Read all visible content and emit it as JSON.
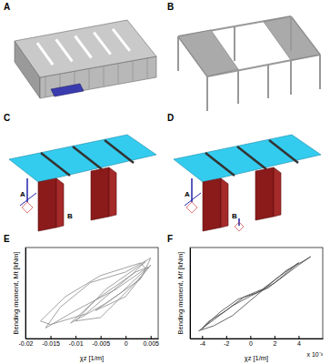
{
  "panels": {
    "labels": [
      "A",
      "B",
      "C",
      "D",
      "E",
      "F"
    ],
    "points_c": [
      "A",
      "B"
    ],
    "points_d": [
      "A",
      "B"
    ]
  },
  "chart_data": [
    {
      "type": "line",
      "x_label": "χz [1/m]",
      "y_label": "Bending moment, Mt [kNm]",
      "color": "#8a8a8a",
      "tick_labels": "x",
      "xlim": [
        -0.02,
        0.0065
      ],
      "xticks": [
        -0.02,
        -0.015,
        -0.01,
        -0.005,
        0,
        0.005
      ],
      "ylim": [
        -600,
        700
      ],
      "x": [
        0,
        0.005,
        0.002,
        -0.005,
        -0.01,
        -0.004,
        0.004,
        0.001,
        -0.008,
        -0.015,
        -0.017,
        -0.012,
        -0.005,
        0.003,
        0.004,
        -0.002,
        -0.01,
        -0.016,
        -0.013,
        -0.007,
        0,
        0.005,
        0.003,
        -0.004,
        -0.011,
        -0.006,
        0.002,
        0.0045,
        -0.001,
        -0.006,
        0
      ],
      "values": [
        0,
        450,
        200,
        -300,
        -350,
        100,
        500,
        300,
        -250,
        -400,
        -350,
        0,
        300,
        480,
        400,
        100,
        -200,
        -450,
        -150,
        200,
        350,
        550,
        250,
        -100,
        -380,
        -50,
        350,
        420,
        50,
        -200,
        0
      ]
    },
    {
      "type": "line",
      "x_label": "χz [1/m]",
      "y_label": "Bending moment, Mf [kNm]",
      "color": "#404040",
      "tick_labels": "x",
      "annotations": [
        "x 10⁻³"
      ],
      "xlim": [
        -5,
        6
      ],
      "xticks": [
        -4,
        -2,
        0,
        2,
        4
      ],
      "ylim": [
        -550,
        650
      ],
      "x": [
        -4.3,
        -3,
        -1.5,
        0,
        1.5,
        3,
        4.5,
        5,
        4,
        2,
        0.5,
        -1,
        -2.5,
        -4,
        -3.5,
        -2,
        -0.5,
        1,
        2.5,
        4,
        3.5,
        1.5,
        0,
        -1.5,
        -3,
        -4.2
      ],
      "values": [
        -450,
        -380,
        -250,
        -50,
        150,
        350,
        480,
        530,
        420,
        180,
        50,
        -30,
        -200,
        -420,
        -330,
        -180,
        0,
        100,
        280,
        450,
        380,
        120,
        10,
        -120,
        -300,
        -440
      ]
    }
  ]
}
